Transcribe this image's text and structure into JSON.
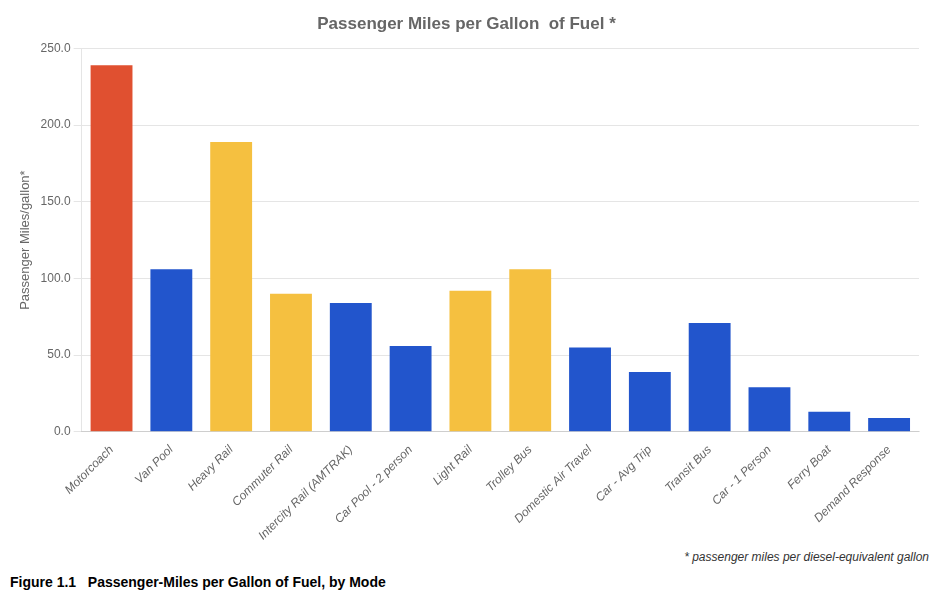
{
  "chart_data": {
    "type": "bar",
    "title": "Passenger Miles per Gallon  of Fuel *",
    "ylabel": "Passenger Miles/gallon*",
    "categories": [
      "Motorcoach",
      "Van Pool",
      "Heavy Rail",
      "Commuter Rail",
      "Intercity Rail (AMTRAK)",
      "Car Pool - 2 person",
      "Light Rail",
      "Trolley Bus",
      "Domestic Air Travel",
      "Car - Avg Trip",
      "Transit Bus",
      "Car - 1 Person",
      "Ferry Boat",
      "Demand Response"
    ],
    "values": [
      239,
      106,
      189,
      90,
      84,
      56,
      92,
      106,
      55,
      39,
      71,
      29,
      13,
      9
    ],
    "colors": [
      "#e05030",
      "#2255cc",
      "#f5c040",
      "#f5c040",
      "#2255cc",
      "#2255cc",
      "#f5c040",
      "#f5c040",
      "#2255cc",
      "#2255cc",
      "#2255cc",
      "#2255cc",
      "#2255cc",
      "#2255cc"
    ],
    "ylim": [
      0,
      250
    ],
    "yticks": [
      {
        "value": 0,
        "label": "0.0"
      },
      {
        "value": 50,
        "label": "50.0"
      },
      {
        "value": 100,
        "label": "100.0"
      },
      {
        "value": 150,
        "label": "150.0"
      },
      {
        "value": 200,
        "label": "200.0"
      },
      {
        "value": 250,
        "label": "250.0"
      }
    ],
    "grid": true,
    "footnote": "* passenger miles per diesel-equivalent gallon",
    "caption": "Figure 1.1   Passenger-Miles per Gallon of Fuel, by Mode"
  }
}
